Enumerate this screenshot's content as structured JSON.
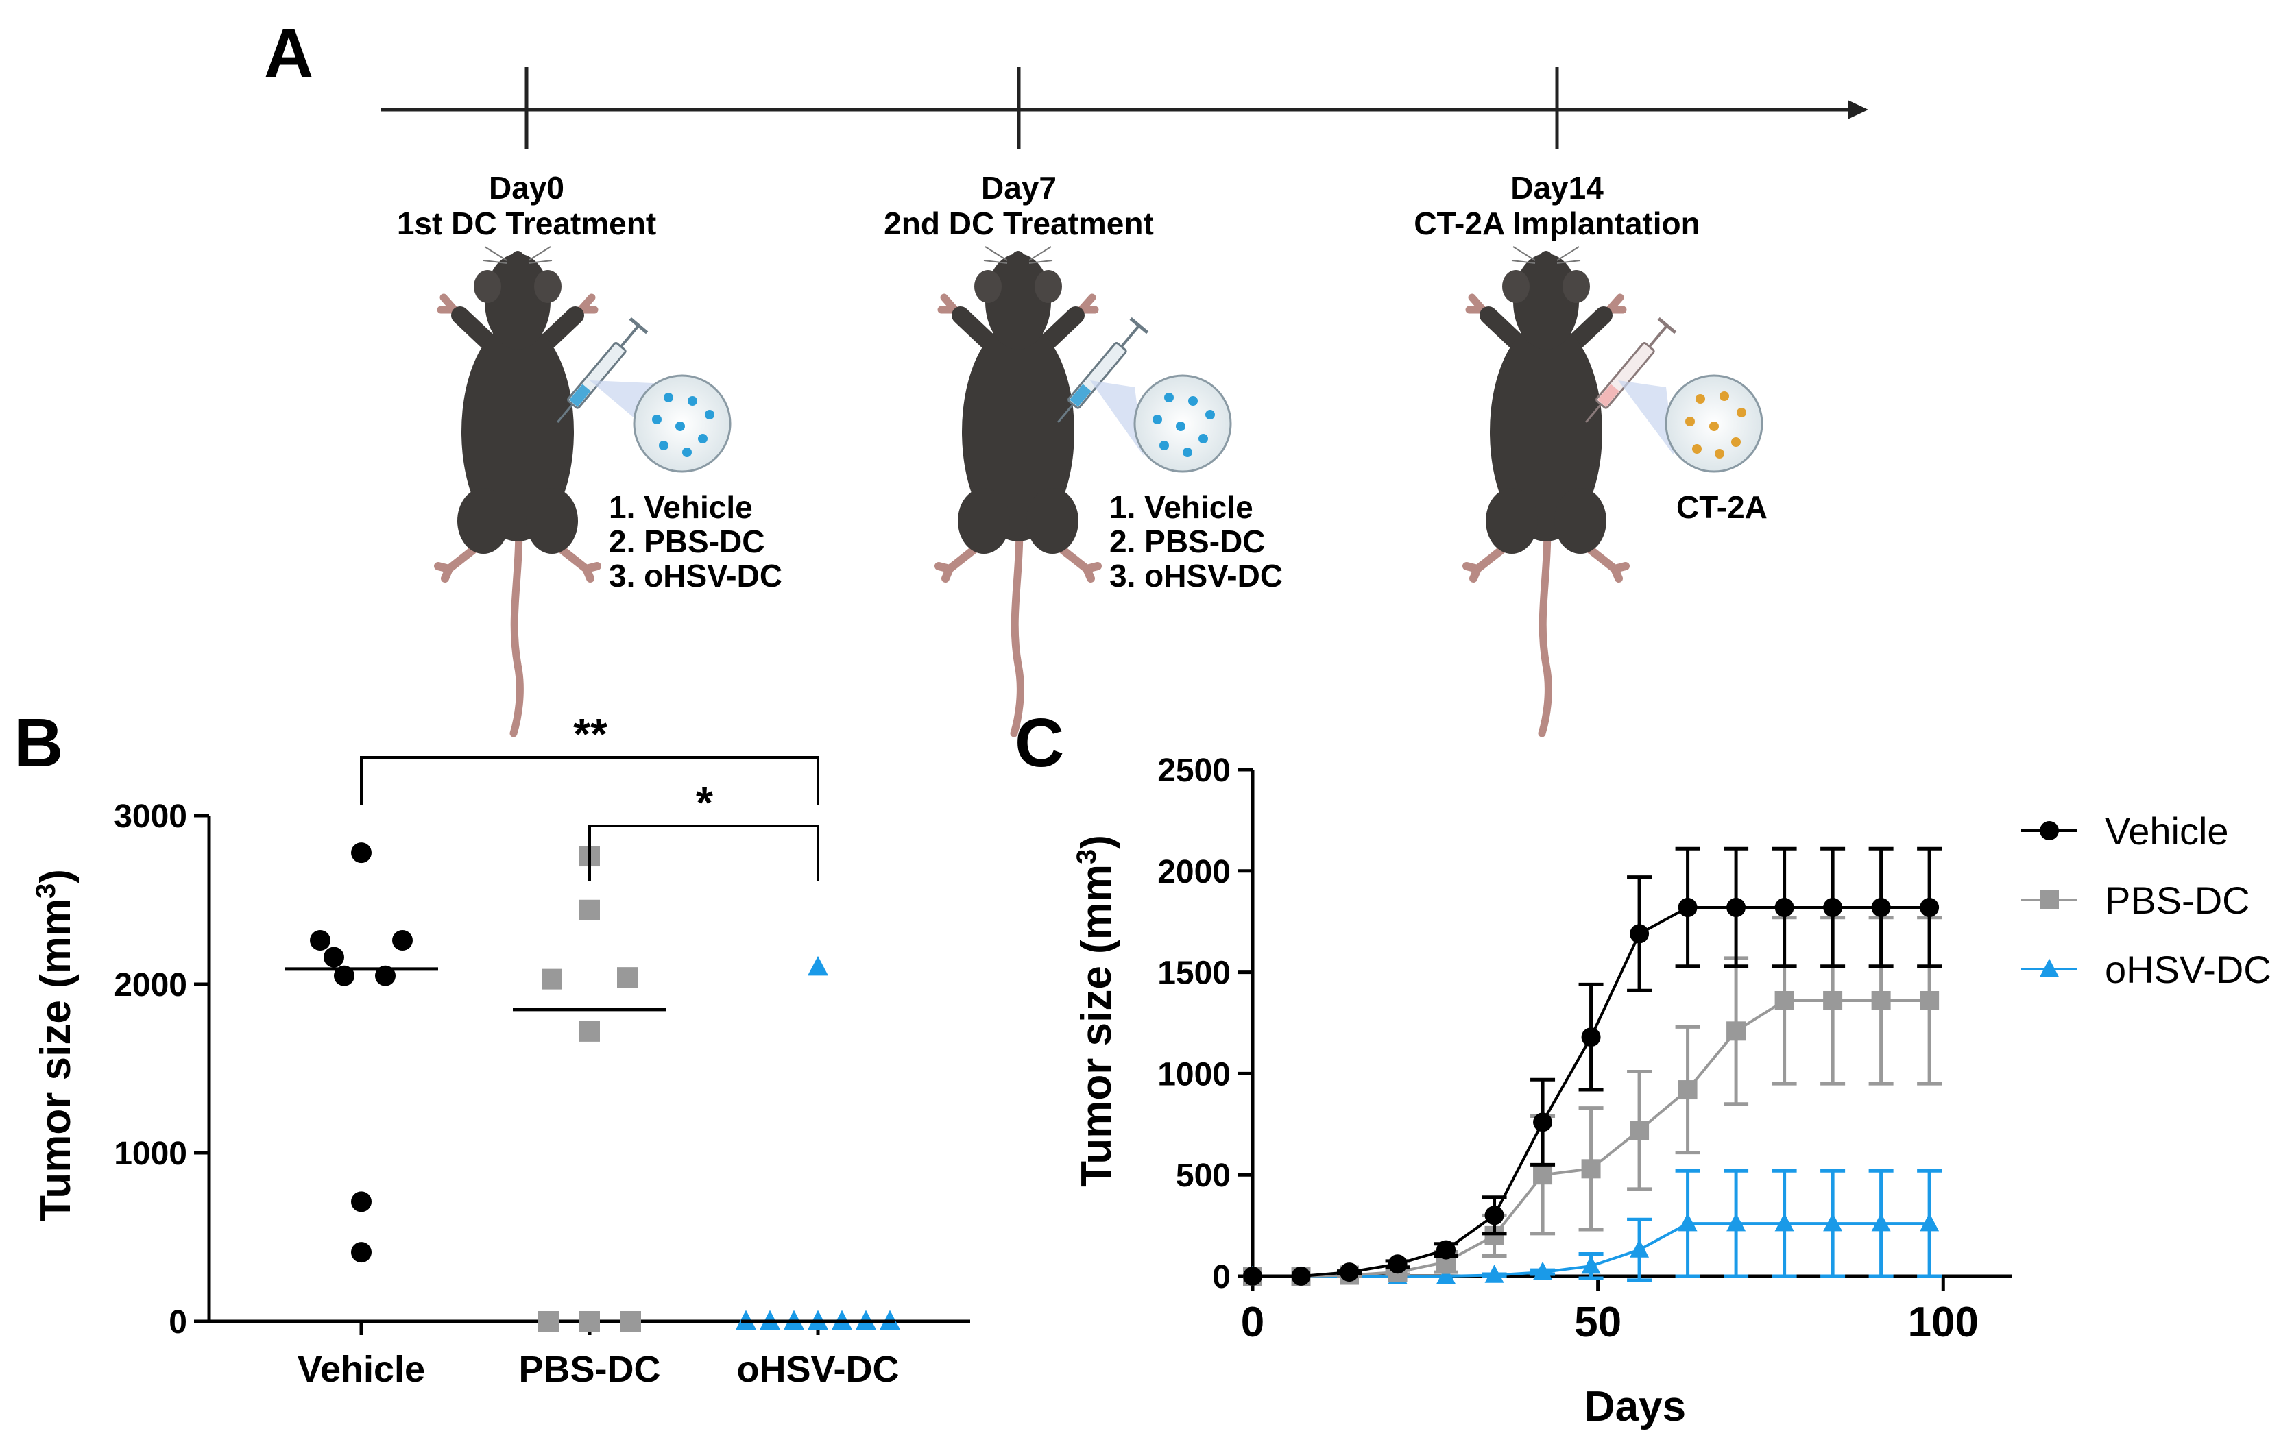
{
  "panels": {
    "a": "A",
    "b": "B",
    "c": "C"
  },
  "timeline": {
    "events": [
      {
        "day": "Day0",
        "event": "1st DC Treatment",
        "items": [
          "1.  Vehicle",
          "2.  PBS-DC",
          "3.  oHSV-DC"
        ]
      },
      {
        "day": "Day7",
        "event": "2nd DC Treatment",
        "items": [
          "1.  Vehicle",
          "2.  PBS-DC",
          "3.  oHSV-DC"
        ]
      },
      {
        "day": "Day14",
        "event": "CT-2A Implantation",
        "items": [
          "CT-2A"
        ]
      }
    ]
  },
  "colors": {
    "vehicle": "#000000",
    "pbs": "#999999",
    "ohsv": "#1a9ae8",
    "mouse": "#3d3a38",
    "tail": "#b88a84"
  },
  "chart_data": [
    {
      "type": "scatter",
      "title": "",
      "xlabel": "",
      "ylabel": "Tumor size (mm3)",
      "ylabel_main": "Tumor size (mm",
      "ylabel_sup": "3",
      "ylabel_end": ")",
      "ylim": [
        0,
        3000
      ],
      "yticks": [
        0,
        1000,
        2000,
        3000
      ],
      "categories": [
        "Vehicle",
        "PBS-DC",
        "oHSV-DC"
      ],
      "series": [
        {
          "name": "Vehicle",
          "marker": "circle",
          "points": [
            2780,
            2260,
            2260,
            2160,
            2050,
            2050,
            710,
            410
          ],
          "mean": 2090
        },
        {
          "name": "PBS-DC",
          "marker": "square",
          "points": [
            2760,
            2440,
            2040,
            2030,
            1720,
            0,
            0,
            0
          ],
          "mean": 1850
        },
        {
          "name": "oHSV-DC",
          "marker": "triangle",
          "points": [
            2100,
            0,
            0,
            0,
            0,
            0,
            0,
            0
          ],
          "mean": 0
        }
      ],
      "significance": [
        {
          "from": "Vehicle",
          "to": "oHSV-DC",
          "label": "**"
        },
        {
          "from": "PBS-DC",
          "to": "oHSV-DC",
          "label": "*"
        }
      ]
    },
    {
      "type": "line",
      "title": "",
      "xlabel": "Days",
      "ylabel": "Tumor size (mm3)",
      "ylabel_main": "Tumor size (mm",
      "ylabel_sup": "3",
      "ylabel_end": ")",
      "xlim": [
        0,
        110
      ],
      "xticks": [
        0,
        50,
        100
      ],
      "ylim": [
        0,
        2500
      ],
      "yticks": [
        0,
        500,
        1000,
        1500,
        2000,
        2500
      ],
      "x": [
        0,
        7,
        14,
        21,
        28,
        35,
        42,
        49,
        56,
        63,
        70,
        77,
        84,
        91,
        98
      ],
      "legend": "right",
      "series": [
        {
          "name": "Vehicle",
          "marker": "circle",
          "values": [
            0,
            0,
            20,
            60,
            130,
            300,
            760,
            1180,
            1690,
            1820,
            1820,
            1820,
            1820,
            1820,
            1820
          ],
          "errors": [
            0,
            0,
            5,
            15,
            30,
            90,
            210,
            260,
            280,
            290,
            290,
            290,
            290,
            290,
            290
          ]
        },
        {
          "name": "PBS-DC",
          "marker": "square",
          "values": [
            0,
            0,
            5,
            20,
            70,
            200,
            500,
            530,
            720,
            920,
            1210,
            1360,
            1360,
            1360,
            1360
          ],
          "errors": [
            0,
            0,
            5,
            10,
            50,
            100,
            290,
            300,
            290,
            310,
            360,
            410,
            410,
            410,
            410
          ]
        },
        {
          "name": "oHSV-DC",
          "marker": "triangle",
          "values": [
            0,
            0,
            0,
            0,
            0,
            5,
            20,
            50,
            130,
            260,
            260,
            260,
            260,
            260,
            260
          ],
          "errors": [
            0,
            0,
            0,
            0,
            0,
            5,
            10,
            60,
            150,
            260,
            260,
            260,
            260,
            260,
            260
          ]
        }
      ]
    }
  ]
}
